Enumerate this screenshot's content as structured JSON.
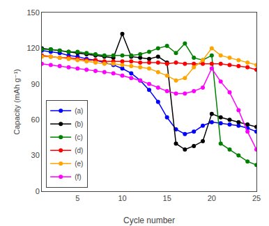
{
  "chart_data": {
    "type": "line",
    "xlabel": "Cycle number",
    "ylabel": "Capacity (mAh g⁻¹)",
    "x": [
      1,
      2,
      3,
      4,
      5,
      6,
      7,
      8,
      9,
      10,
      11,
      12,
      13,
      14,
      15,
      16,
      17,
      18,
      19,
      20,
      21,
      22,
      23,
      24,
      25
    ],
    "series": [
      {
        "name": "(a)",
        "color": "#0000FF",
        "values": [
          118,
          117,
          116,
          114,
          113,
          111,
          110,
          108,
          106,
          103,
          99,
          93,
          85,
          75,
          62,
          52,
          48,
          50,
          55,
          58,
          57,
          56,
          55,
          53,
          50
        ]
      },
      {
        "name": "(b)",
        "color": "#000000",
        "values": [
          120,
          119,
          118,
          117,
          116,
          115,
          114,
          113,
          112,
          132,
          113,
          112,
          111,
          113,
          108,
          40,
          35,
          38,
          42,
          65,
          62,
          60,
          58,
          56,
          54
        ]
      },
      {
        "name": "(c)",
        "color": "#008000",
        "values": [
          119,
          119,
          118,
          117,
          117,
          116,
          115,
          114,
          114,
          114,
          114,
          115,
          117,
          120,
          122,
          116,
          124,
          112,
          110,
          114,
          40,
          35,
          30,
          25,
          22
        ]
      },
      {
        "name": "(d)",
        "color": "#FF0000",
        "values": [
          114,
          113,
          112,
          112,
          111,
          110,
          110,
          109,
          109,
          109,
          109,
          108,
          108,
          108,
          107,
          108,
          107,
          107,
          107,
          107,
          107,
          106,
          105,
          104,
          102
        ]
      },
      {
        "name": "(e)",
        "color": "#FFA500",
        "values": [
          113,
          113,
          112,
          111,
          110,
          109,
          108,
          107,
          107,
          106,
          105,
          104,
          103,
          100,
          97,
          93,
          95,
          104,
          110,
          120,
          114,
          112,
          110,
          108,
          106
        ]
      },
      {
        "name": "(f)",
        "color": "#FF00FF",
        "values": [
          107,
          106,
          105,
          104,
          103,
          102,
          101,
          100,
          99,
          97,
          95,
          93,
          90,
          87,
          84,
          82,
          82,
          84,
          87,
          103,
          92,
          83,
          68,
          50,
          35
        ]
      }
    ],
    "xlim": [
      1,
      25
    ],
    "xticks": [
      5,
      10,
      15,
      20,
      25
    ],
    "ylim": [
      0,
      150
    ],
    "yticks": [
      0,
      30,
      60,
      90,
      120,
      150
    ],
    "marker": "circle",
    "line_style": "solid",
    "grid": false,
    "legend": "lower left"
  }
}
